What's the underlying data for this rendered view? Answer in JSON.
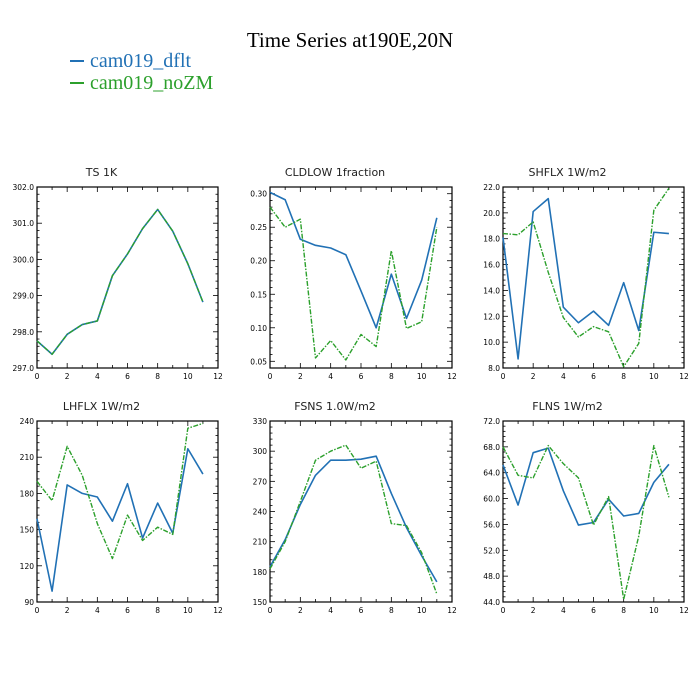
{
  "title": "Time Series at190E,20N",
  "legend": [
    {
      "name": "cam019_dflt",
      "color": "#2171b5"
    },
    {
      "name": "cam019_noZM",
      "color": "#2ca02c"
    }
  ],
  "chart_data": [
    {
      "type": "line",
      "title": "TS   1K",
      "x": [
        0,
        1,
        2,
        3,
        4,
        5,
        6,
        7,
        8,
        9,
        10,
        11
      ],
      "xlim": [
        0,
        12
      ],
      "xticks": [
        "0",
        "2",
        "4",
        "6",
        "8",
        "10",
        "12"
      ],
      "ylim": [
        297.0,
        302.0
      ],
      "yticks": [
        "297.0",
        "298.0",
        "299.0",
        "300.0",
        "301.0",
        "302.0"
      ],
      "series": [
        {
          "name": "cam019_dflt",
          "values": [
            297.75,
            297.38,
            297.93,
            298.2,
            298.3,
            299.55,
            300.15,
            300.85,
            301.38,
            300.78,
            299.88,
            298.82
          ]
        },
        {
          "name": "cam019_noZM",
          "values": [
            297.75,
            297.38,
            297.93,
            298.2,
            298.3,
            299.55,
            300.15,
            300.85,
            301.38,
            300.78,
            299.88,
            298.82
          ]
        }
      ]
    },
    {
      "type": "line",
      "title": "CLDLOW   1fraction",
      "x": [
        0,
        1,
        2,
        3,
        4,
        5,
        6,
        7,
        8,
        9,
        10,
        11
      ],
      "xlim": [
        0,
        12
      ],
      "xticks": [
        "0",
        "2",
        "4",
        "6",
        "8",
        "10",
        "12"
      ],
      "ylim": [
        0.04,
        0.31
      ],
      "yticks": [
        "0.05",
        "0.10",
        "0.15",
        "0.20",
        "0.25",
        "0.30"
      ],
      "series": [
        {
          "name": "cam019_dflt",
          "values": [
            0.302,
            0.291,
            0.232,
            0.223,
            0.219,
            0.209,
            0.155,
            0.1,
            0.18,
            0.114,
            0.171,
            0.264
          ]
        },
        {
          "name": "cam019_noZM",
          "values": [
            0.28,
            0.25,
            0.262,
            0.055,
            0.081,
            0.052,
            0.09,
            0.072,
            0.215,
            0.099,
            0.109,
            0.25
          ]
        }
      ]
    },
    {
      "type": "line",
      "title": "SHFLX   1W/m2",
      "x": [
        0,
        1,
        2,
        3,
        4,
        5,
        6,
        7,
        8,
        9,
        10,
        11
      ],
      "xlim": [
        0,
        12
      ],
      "xticks": [
        "0",
        "2",
        "4",
        "6",
        "8",
        "10",
        "12"
      ],
      "ylim": [
        8.0,
        22.0
      ],
      "yticks": [
        "8.0",
        "10.0",
        "12.0",
        "14.0",
        "16.0",
        "18.0",
        "20.0",
        "22.0"
      ],
      "series": [
        {
          "name": "cam019_dflt",
          "values": [
            18.1,
            8.7,
            20.1,
            21.1,
            12.7,
            11.5,
            12.4,
            11.3,
            14.6,
            10.9,
            18.5,
            18.4
          ]
        },
        {
          "name": "cam019_noZM",
          "values": [
            18.4,
            18.3,
            19.3,
            15.4,
            11.9,
            10.4,
            11.2,
            10.8,
            8.1,
            9.9,
            20.2,
            21.9
          ]
        }
      ]
    },
    {
      "type": "line",
      "title": "LHFLX   1W/m2",
      "x": [
        0,
        1,
        2,
        3,
        4,
        5,
        6,
        7,
        8,
        9,
        10,
        11
      ],
      "xlim": [
        0,
        12
      ],
      "xticks": [
        "0",
        "2",
        "4",
        "6",
        "8",
        "10",
        "12"
      ],
      "ylim": [
        90,
        240
      ],
      "yticks": [
        "90",
        "120",
        "150",
        "180",
        "210",
        "240"
      ],
      "series": [
        {
          "name": "cam019_dflt",
          "values": [
            159,
            99,
            187,
            180,
            177,
            157,
            188,
            143,
            172,
            147,
            217,
            196
          ]
        },
        {
          "name": "cam019_noZM",
          "values": [
            190,
            174,
            219,
            195,
            155,
            126,
            162,
            141,
            152,
            146,
            234,
            238
          ]
        }
      ]
    },
    {
      "type": "line",
      "title": "FSNS   1.0W/m2",
      "x": [
        0,
        1,
        2,
        3,
        4,
        5,
        6,
        7,
        8,
        9,
        10,
        11
      ],
      "xlim": [
        0,
        12
      ],
      "xticks": [
        "0",
        "2",
        "4",
        "6",
        "8",
        "10",
        "12"
      ],
      "ylim": [
        150,
        330
      ],
      "yticks": [
        "150",
        "180",
        "210",
        "240",
        "270",
        "300",
        "330"
      ],
      "series": [
        {
          "name": "cam019_dflt",
          "values": [
            185,
            212,
            247,
            276,
            291,
            291,
            292,
            295,
            258,
            224,
            196,
            170
          ]
        },
        {
          "name": "cam019_noZM",
          "values": [
            183,
            210,
            250,
            291,
            300,
            306,
            283,
            290,
            228,
            226,
            199,
            158
          ]
        }
      ]
    },
    {
      "type": "line",
      "title": "FLNS   1W/m2",
      "x": [
        0,
        1,
        2,
        3,
        4,
        5,
        6,
        7,
        8,
        9,
        10,
        11
      ],
      "xlim": [
        0,
        12
      ],
      "xticks": [
        "0",
        "2",
        "4",
        "6",
        "8",
        "10",
        "12"
      ],
      "ylim": [
        44.0,
        72.0
      ],
      "yticks": [
        "44.0",
        "48.0",
        "52.0",
        "56.0",
        "60.0",
        "64.0",
        "68.0",
        "72.0"
      ],
      "series": [
        {
          "name": "cam019_dflt",
          "values": [
            65.2,
            59.0,
            67.1,
            67.8,
            61.2,
            55.9,
            56.3,
            59.9,
            57.3,
            57.7,
            62.5,
            65.3
          ]
        },
        {
          "name": "cam019_noZM",
          "values": [
            68.0,
            63.6,
            63.2,
            68.2,
            65.4,
            63.2,
            55.9,
            60.3,
            44.4,
            54.2,
            68.2,
            60.2
          ]
        }
      ]
    }
  ]
}
